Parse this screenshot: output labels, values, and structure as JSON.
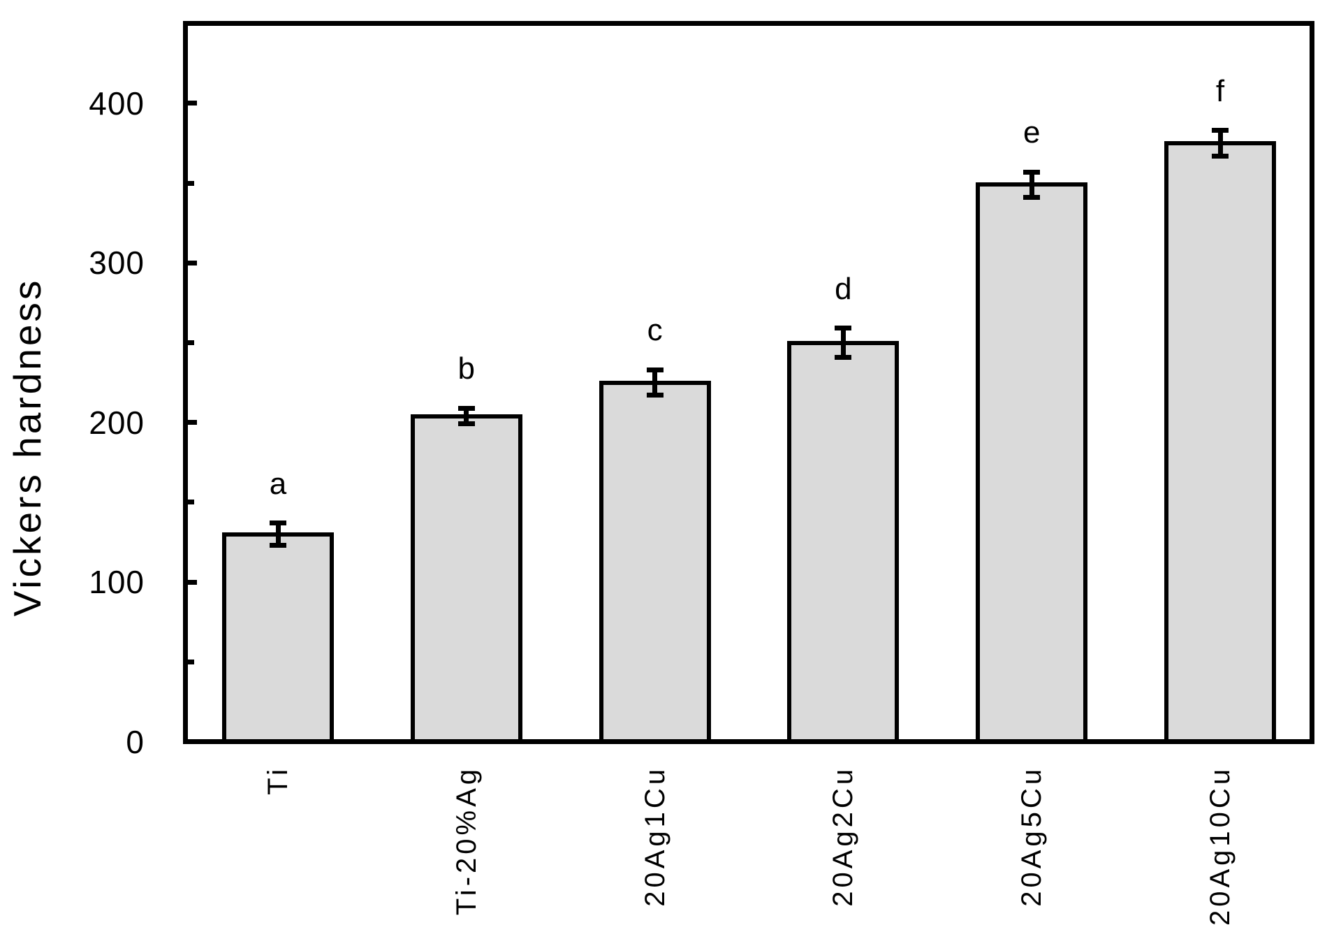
{
  "chart_data": {
    "type": "bar",
    "title": "",
    "ylabel": "Vickers hardness",
    "xlabel": "",
    "categories": [
      "Ti",
      "Ti-20%Ag",
      "20Ag1Cu",
      "20Ag2Cu",
      "20Ag5Cu",
      "20Ag10Cu"
    ],
    "values": [
      130,
      204,
      225,
      250,
      349,
      375
    ],
    "error_bars": [
      7,
      5,
      8,
      9,
      8,
      8
    ],
    "sig_letters": [
      "a",
      "b",
      "c",
      "d",
      "e",
      "f"
    ],
    "ylim": [
      0,
      450
    ],
    "yticks": [
      0,
      100,
      200,
      300,
      400
    ],
    "yticks_minor": [
      50,
      150,
      250,
      350
    ],
    "grid": false,
    "legend_position": "none",
    "bar_fill_color": "#dadada",
    "bar_edge_color": "#000000",
    "axis_color": "#000000",
    "background_color": "#ffffff"
  }
}
